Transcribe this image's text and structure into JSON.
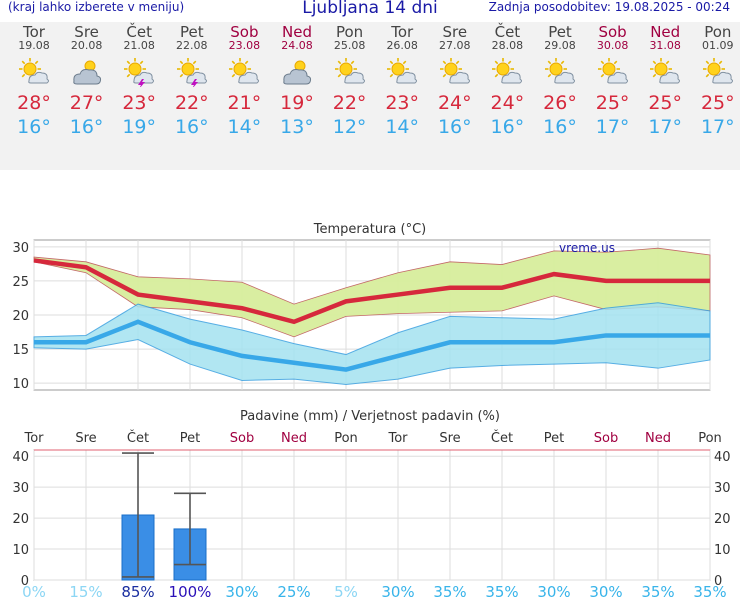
{
  "header": {
    "hint": "(kraj lahko izberete v meniju)",
    "title": "Ljubljana 14 dni",
    "updated": "Zadnja posodobitev: 19.08.2025 - 00:24"
  },
  "days": [
    {
      "name": "Tor",
      "date": "19.08",
      "weekend": false,
      "icon": "sun-cloud-icon",
      "tmax": "28°",
      "tmin": "16°"
    },
    {
      "name": "Sre",
      "date": "20.08",
      "weekend": false,
      "icon": "cloudy-sun-icon",
      "tmax": "27°",
      "tmin": "16°"
    },
    {
      "name": "Čet",
      "date": "21.08",
      "weekend": false,
      "icon": "thunderstorm-icon",
      "tmax": "23°",
      "tmin": "19°"
    },
    {
      "name": "Pet",
      "date": "22.08",
      "weekend": false,
      "icon": "thunderstorm-icon",
      "tmax": "22°",
      "tmin": "16°"
    },
    {
      "name": "Sob",
      "date": "23.08",
      "weekend": true,
      "icon": "sun-cloud-icon",
      "tmax": "21°",
      "tmin": "14°"
    },
    {
      "name": "Ned",
      "date": "24.08",
      "weekend": true,
      "icon": "cloudy-sun-icon",
      "tmax": "19°",
      "tmin": "13°"
    },
    {
      "name": "Pon",
      "date": "25.08",
      "weekend": false,
      "icon": "sun-cloud-icon",
      "tmax": "22°",
      "tmin": "12°"
    },
    {
      "name": "Tor",
      "date": "26.08",
      "weekend": false,
      "icon": "sun-cloud-icon",
      "tmax": "23°",
      "tmin": "14°"
    },
    {
      "name": "Sre",
      "date": "27.08",
      "weekend": false,
      "icon": "sun-cloud-icon",
      "tmax": "24°",
      "tmin": "16°"
    },
    {
      "name": "Čet",
      "date": "28.08",
      "weekend": false,
      "icon": "sun-cloud-icon",
      "tmax": "24°",
      "tmin": "16°"
    },
    {
      "name": "Pet",
      "date": "29.08",
      "weekend": false,
      "icon": "sun-cloud-icon",
      "tmax": "26°",
      "tmin": "16°"
    },
    {
      "name": "Sob",
      "date": "30.08",
      "weekend": true,
      "icon": "sun-cloud-icon",
      "tmax": "25°",
      "tmin": "17°"
    },
    {
      "name": "Ned",
      "date": "31.08",
      "weekend": true,
      "icon": "sun-cloud-icon",
      "tmax": "25°",
      "tmin": "17°"
    },
    {
      "name": "Pon",
      "date": "01.09",
      "weekend": false,
      "icon": "sun-cloud-icon",
      "tmax": "25°",
      "tmin": "17°"
    }
  ],
  "colors": {
    "tmax": "#d6283c",
    "tmin": "#38a8e8",
    "weekend": "#a00040",
    "precip_bar": "#3a8ee6",
    "max_band": "#d8ee9c",
    "min_band": "#a4e2f0"
  },
  "chart_data": [
    {
      "type": "line",
      "title": "Temperatura (°C)",
      "watermark": "vreme.us",
      "x": [
        "19.08",
        "20.08",
        "21.08",
        "22.08",
        "23.08",
        "24.08",
        "25.08",
        "26.08",
        "27.08",
        "28.08",
        "29.08",
        "30.08",
        "31.08",
        "01.09"
      ],
      "ylim": [
        9,
        31
      ],
      "yticks": [
        10,
        15,
        20,
        25,
        30
      ],
      "grid": true,
      "series": [
        {
          "role": "max",
          "values": [
            28,
            27,
            23,
            22,
            21,
            19,
            22,
            23,
            24,
            24,
            26,
            25,
            25,
            25
          ],
          "band_upper": [
            28.5,
            27.8,
            25.6,
            25.3,
            24.8,
            21.6,
            24.0,
            26.2,
            27.8,
            27.4,
            29.4,
            29.2,
            29.8,
            28.8
          ],
          "band_lower": [
            27.8,
            26.2,
            21.2,
            20.8,
            19.6,
            16.8,
            19.8,
            20.2,
            20.4,
            20.6,
            22.8,
            20.8,
            21.2,
            20.6
          ]
        },
        {
          "role": "min",
          "values": [
            16,
            16,
            19,
            16,
            14,
            13,
            12,
            14,
            16,
            16,
            16,
            17,
            17,
            17
          ],
          "band_upper": [
            16.8,
            17.0,
            21.6,
            19.4,
            17.8,
            15.8,
            14.2,
            17.4,
            19.8,
            19.6,
            19.4,
            21.0,
            21.8,
            20.6
          ],
          "band_lower": [
            15.2,
            15.0,
            16.4,
            12.8,
            10.4,
            10.6,
            9.8,
            10.6,
            12.2,
            12.6,
            12.8,
            13.0,
            12.2,
            13.4
          ]
        }
      ]
    },
    {
      "type": "bar",
      "title": "Padavine (mm) / Verjetnost padavin (%)",
      "categories": [
        "Tor",
        "Sre",
        "Čet",
        "Pet",
        "Sob",
        "Ned",
        "Pon",
        "Tor",
        "Sre",
        "Čet",
        "Pet",
        "Sob",
        "Ned",
        "Pon"
      ],
      "weekend": [
        false,
        false,
        false,
        false,
        true,
        true,
        false,
        false,
        false,
        false,
        false,
        true,
        true,
        false
      ],
      "values": [
        0,
        0,
        21,
        16.5,
        0,
        0,
        0,
        0,
        0,
        0,
        0,
        0,
        0,
        0
      ],
      "error_low": [
        0,
        0,
        1,
        5,
        0,
        0,
        0,
        0,
        0,
        0,
        0,
        0,
        0,
        0
      ],
      "error_high": [
        0,
        0,
        41,
        28,
        0,
        0,
        0,
        0,
        0,
        0,
        0,
        0,
        0,
        0
      ],
      "ylim": [
        0,
        42
      ],
      "yticks": [
        0,
        10,
        20,
        30,
        40
      ],
      "probability": [
        "0%",
        "15%",
        "85%",
        "100%",
        "30%",
        "25%",
        "5%",
        "30%",
        "35%",
        "35%",
        "30%",
        "30%",
        "35%",
        "35%"
      ],
      "probability_values": [
        0,
        15,
        85,
        100,
        30,
        25,
        5,
        30,
        35,
        35,
        30,
        30,
        35,
        35
      ]
    }
  ]
}
